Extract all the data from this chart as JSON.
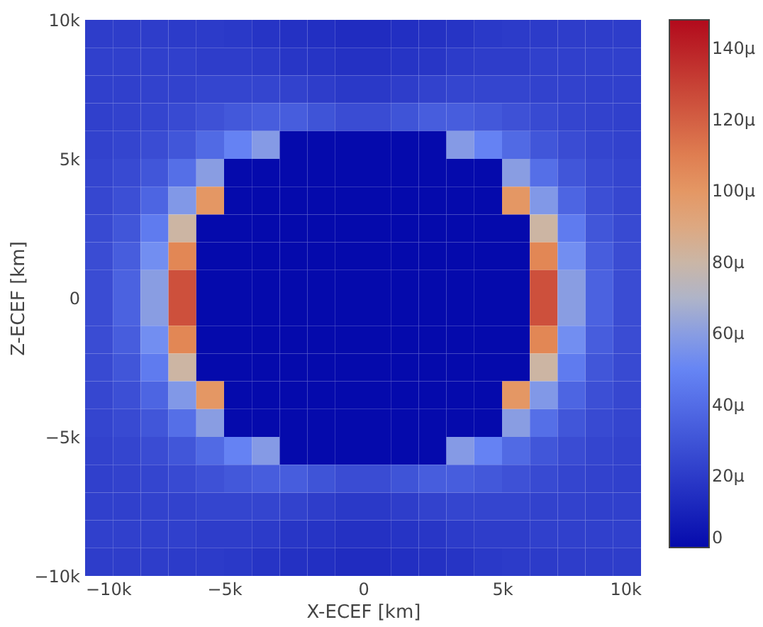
{
  "chart_data": {
    "type": "heatmap",
    "xlabel": "X-ECEF [km]",
    "ylabel": "Z-ECEF [km]",
    "xlim": [
      -10000,
      10000
    ],
    "ylim": [
      -10000,
      10000
    ],
    "xticks": [
      {
        "value": -10000,
        "label": "−10k"
      },
      {
        "value": -5000,
        "label": "−5k"
      },
      0,
      {
        "value": 5000,
        "label": "5k"
      },
      {
        "value": 10000,
        "label": "10k"
      }
    ],
    "yticks": [
      {
        "value": -10000,
        "label": "−10k"
      },
      {
        "value": -5000,
        "label": "−5k"
      },
      0,
      {
        "value": 5000,
        "label": "5k"
      },
      {
        "value": 10000,
        "label": "10k"
      }
    ],
    "clim": [
      0,
      148
    ],
    "cticks": [
      0,
      {
        "value": 20,
        "label": "20μ"
      },
      {
        "value": 40,
        "label": "40μ"
      },
      {
        "value": 60,
        "label": "60μ"
      },
      {
        "value": 80,
        "label": "80μ"
      },
      {
        "value": 100,
        "label": "100μ"
      },
      {
        "value": 120,
        "label": "120μ"
      },
      {
        "value": 140,
        "label": "140μ"
      }
    ],
    "cells": [
      [
        21,
        21,
        21,
        20,
        20,
        19,
        17,
        16,
        15,
        14,
        14,
        15,
        16,
        17,
        19,
        20,
        20,
        21,
        21,
        21
      ],
      [
        22,
        22,
        22,
        22,
        21,
        21,
        20,
        18,
        17,
        16,
        16,
        17,
        18,
        20,
        21,
        21,
        22,
        22,
        22,
        22
      ],
      [
        22,
        22,
        23,
        23,
        24,
        24,
        24,
        23,
        21,
        19,
        19,
        21,
        23,
        24,
        24,
        24,
        23,
        23,
        22,
        22
      ],
      [
        22,
        23,
        24,
        26,
        29,
        32,
        34,
        34,
        30,
        27,
        27,
        30,
        34,
        34,
        32,
        29,
        26,
        24,
        23,
        22
      ],
      [
        23,
        24,
        27,
        31,
        39,
        49,
        59,
        0,
        0,
        0,
        0,
        0,
        0,
        59,
        49,
        39,
        31,
        27,
        24,
        23
      ],
      [
        24,
        26,
        31,
        41,
        60,
        0,
        0,
        0,
        0,
        0,
        0,
        0,
        0,
        0,
        0,
        60,
        41,
        31,
        26,
        24
      ],
      [
        25,
        28,
        37,
        58,
        100,
        0,
        0,
        0,
        0,
        0,
        0,
        0,
        0,
        0,
        0,
        100,
        58,
        37,
        28,
        25
      ],
      [
        26,
        31,
        46,
        81,
        0,
        0,
        0,
        0,
        0,
        0,
        0,
        0,
        0,
        0,
        0,
        0,
        81,
        46,
        31,
        26
      ],
      [
        27,
        34,
        54,
        107,
        0,
        0,
        0,
        0,
        0,
        0,
        0,
        0,
        0,
        0,
        0,
        0,
        107,
        54,
        34,
        27
      ],
      [
        27,
        36,
        60,
        125,
        0,
        0,
        0,
        0,
        0,
        0,
        0,
        0,
        0,
        0,
        0,
        0,
        125,
        60,
        36,
        27
      ],
      [
        27,
        36,
        60,
        125,
        0,
        0,
        0,
        0,
        0,
        0,
        0,
        0,
        0,
        0,
        0,
        0,
        125,
        60,
        36,
        27
      ],
      [
        27,
        34,
        54,
        107,
        0,
        0,
        0,
        0,
        0,
        0,
        0,
        0,
        0,
        0,
        0,
        0,
        107,
        54,
        34,
        27
      ],
      [
        26,
        31,
        46,
        81,
        0,
        0,
        0,
        0,
        0,
        0,
        0,
        0,
        0,
        0,
        0,
        0,
        81,
        46,
        31,
        26
      ],
      [
        25,
        28,
        37,
        58,
        100,
        0,
        0,
        0,
        0,
        0,
        0,
        0,
        0,
        0,
        0,
        100,
        58,
        37,
        28,
        25
      ],
      [
        24,
        26,
        31,
        41,
        60,
        0,
        0,
        0,
        0,
        0,
        0,
        0,
        0,
        0,
        0,
        60,
        41,
        31,
        26,
        24
      ],
      [
        23,
        24,
        27,
        31,
        39,
        49,
        59,
        0,
        0,
        0,
        0,
        0,
        0,
        59,
        49,
        39,
        31,
        27,
        24,
        23
      ],
      [
        22,
        23,
        24,
        26,
        29,
        32,
        34,
        34,
        30,
        27,
        27,
        30,
        34,
        34,
        32,
        29,
        26,
        24,
        23,
        22
      ],
      [
        22,
        22,
        23,
        23,
        24,
        24,
        24,
        23,
        21,
        19,
        19,
        21,
        23,
        24,
        24,
        24,
        23,
        23,
        22,
        22
      ],
      [
        22,
        22,
        22,
        22,
        21,
        21,
        20,
        18,
        17,
        16,
        16,
        17,
        18,
        20,
        21,
        21,
        22,
        22,
        22,
        22
      ],
      [
        21,
        21,
        21,
        20,
        20,
        19,
        17,
        16,
        15,
        14,
        14,
        15,
        16,
        17,
        19,
        20,
        20,
        21,
        21,
        21
      ]
    ]
  }
}
